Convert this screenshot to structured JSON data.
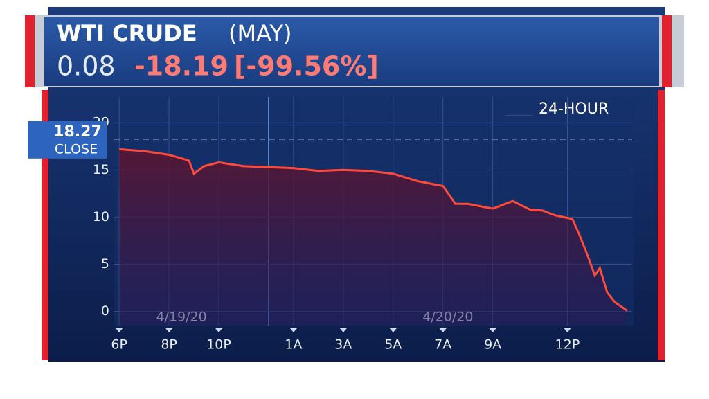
{
  "header": {
    "name": "WTI CRUDE",
    "contract": "(MAY)",
    "price": "0.08",
    "change": "-18.19",
    "percent": "[-99.56%]"
  },
  "chart_data": {
    "type": "line",
    "title": "24-HOUR",
    "color": "#ff4a3a",
    "x": [
      0,
      1,
      2,
      2.8,
      3.0,
      3.4,
      4,
      5,
      6,
      7,
      8,
      9,
      10,
      11,
      12,
      13,
      13.5,
      14,
      15,
      15.8,
      16.5,
      17,
      17.5,
      18.2,
      18.5,
      18.8,
      19.1,
      19.3,
      19.6,
      19.9,
      20.4
    ],
    "series": [
      {
        "name": "WTI CRUDE",
        "color": "#ff4a3a",
        "values": [
          17.2,
          17.0,
          16.6,
          16.0,
          14.6,
          15.4,
          15.8,
          15.4,
          15.3,
          15.2,
          14.9,
          15.0,
          14.9,
          14.6,
          13.8,
          13.3,
          11.4,
          11.4,
          10.9,
          11.7,
          10.8,
          10.7,
          10.2,
          9.8,
          8.0,
          6.0,
          3.8,
          4.6,
          2.0,
          1.0,
          0.08
        ]
      }
    ],
    "xlim": [
      -0.2,
      20.6
    ],
    "xticks": [
      {
        "value": 0,
        "label": "6P"
      },
      {
        "value": 2,
        "label": "8P"
      },
      {
        "value": 4,
        "label": "10P"
      },
      {
        "value": 7,
        "label": "1A"
      },
      {
        "value": 9,
        "label": "3A"
      },
      {
        "value": 11,
        "label": "5A"
      },
      {
        "value": 13,
        "label": "7A"
      },
      {
        "value": 15,
        "label": "9A"
      },
      {
        "value": 18,
        "label": "12P"
      }
    ],
    "ylim": [
      -1.5,
      22
    ],
    "yticks": [
      0,
      5,
      10,
      15,
      20
    ],
    "reference": {
      "value": 18.27,
      "value_label": "18.27",
      "label": "CLOSE"
    },
    "annotations": [
      {
        "text": "4/19/20",
        "x": 2.5
      },
      {
        "text": "4/20/20",
        "x": 13.2
      }
    ]
  }
}
